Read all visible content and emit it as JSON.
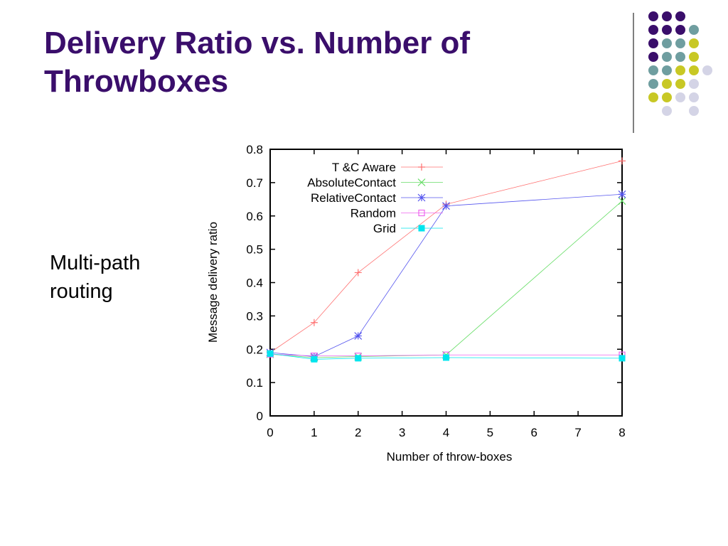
{
  "slide": {
    "title_line1": "Delivery Ratio vs. Number of",
    "title_line2": "Throwboxes",
    "bullet_line1": "Multi-path",
    "bullet_line2": "routing",
    "title_color": "#3a0e6b",
    "dot_colors": [
      "#3a0e6b",
      "#6f9ea0",
      "#c8c825",
      "#d4d4e6"
    ]
  },
  "chart_data": {
    "type": "line",
    "title": "",
    "xlabel": "Number of throw-boxes",
    "ylabel": "Message delivery ratio",
    "xlim": [
      0,
      8
    ],
    "ylim": [
      0,
      0.8
    ],
    "x_ticks": [
      "0",
      "1",
      "2",
      "3",
      "4",
      "5",
      "6",
      "7",
      "8"
    ],
    "y_ticks": [
      "0",
      "0.1",
      "0.2",
      "0.3",
      "0.4",
      "0.5",
      "0.6",
      "0.7",
      "0.8"
    ],
    "legend_position": "top-left-inside",
    "series": [
      {
        "name": "T &C Aware",
        "color": "#ff7070",
        "marker": "plus",
        "x": [
          0,
          1,
          2,
          4,
          8
        ],
        "y": [
          0.19,
          0.28,
          0.43,
          0.635,
          0.765
        ]
      },
      {
        "name": "AbsoluteContact",
        "color": "#66dd66",
        "marker": "cross",
        "x": [
          0,
          1,
          2,
          4,
          8
        ],
        "y": [
          0.185,
          0.175,
          0.178,
          0.183,
          0.645
        ]
      },
      {
        "name": "RelativeContact",
        "color": "#5555ee",
        "marker": "star",
        "x": [
          0,
          1,
          2,
          4,
          8
        ],
        "y": [
          0.19,
          0.178,
          0.24,
          0.63,
          0.665
        ]
      },
      {
        "name": "Random",
        "color": "#ee66ee",
        "marker": "square-open",
        "x": [
          0,
          1,
          2,
          4,
          8
        ],
        "y": [
          0.185,
          0.18,
          0.18,
          0.183,
          0.183
        ]
      },
      {
        "name": "Grid",
        "color": "#00e5ee",
        "marker": "square-filled",
        "x": [
          0,
          1,
          2,
          4,
          8
        ],
        "y": [
          0.187,
          0.17,
          0.173,
          0.175,
          0.173
        ]
      }
    ]
  }
}
